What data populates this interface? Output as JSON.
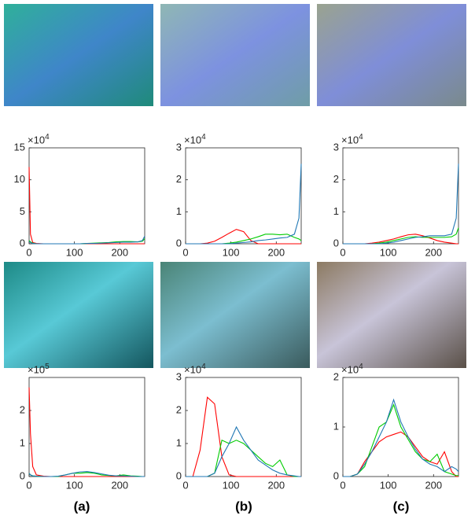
{
  "chart_data": [
    {
      "type": "line",
      "y_scale": {
        "base": "×10",
        "exponent": "4"
      },
      "x": [
        0,
        3,
        8,
        16,
        32,
        48,
        64,
        80,
        96,
        112,
        128,
        144,
        160,
        176,
        192,
        208,
        224,
        240,
        250,
        255
      ],
      "xlim": [
        0,
        255
      ],
      "xticks": [
        0,
        100,
        200
      ],
      "ylim": [
        0,
        15
      ],
      "yticks": [
        0,
        5,
        10,
        15
      ],
      "series": [
        {
          "color": "#ff0000",
          "values": [
            12,
            1.5,
            0.2,
            0.05,
            0,
            0,
            0,
            0,
            0,
            0,
            0,
            0,
            0,
            0,
            0,
            0,
            0,
            0,
            0,
            0
          ]
        },
        {
          "color": "#00cc00",
          "values": [
            0.5,
            0.3,
            0.1,
            0,
            0,
            0,
            0,
            0,
            0,
            0,
            0.05,
            0.1,
            0.15,
            0.2,
            0.3,
            0.35,
            0.35,
            0.3,
            0.4,
            0.8
          ]
        },
        {
          "color": "#1f77b4",
          "values": [
            0.3,
            0.2,
            0.05,
            0,
            0,
            0,
            0,
            0,
            0,
            0,
            0.05,
            0.05,
            0.1,
            0.15,
            0.2,
            0.25,
            0.25,
            0.3,
            0.5,
            1.2
          ]
        }
      ]
    },
    {
      "type": "line",
      "y_scale": {
        "base": "×10",
        "exponent": "4"
      },
      "x": [
        0,
        3,
        8,
        16,
        32,
        48,
        64,
        80,
        96,
        112,
        128,
        144,
        160,
        176,
        192,
        208,
        224,
        240,
        250,
        255
      ],
      "xlim": [
        0,
        255
      ],
      "xticks": [
        0,
        100,
        200
      ],
      "ylim": [
        0,
        3
      ],
      "yticks": [
        0,
        1,
        2,
        3
      ],
      "series": [
        {
          "color": "#ff0000",
          "values": [
            0,
            0,
            0,
            0,
            0,
            0.02,
            0.08,
            0.2,
            0.33,
            0.45,
            0.38,
            0.1,
            0,
            0,
            0,
            0,
            0,
            0,
            0,
            0
          ]
        },
        {
          "color": "#00cc00",
          "values": [
            0,
            0,
            0,
            0,
            0,
            0,
            0,
            0,
            0.02,
            0.05,
            0.1,
            0.15,
            0.22,
            0.3,
            0.3,
            0.28,
            0.3,
            0.2,
            0.15,
            0.1
          ]
        },
        {
          "color": "#1f77b4",
          "values": [
            0,
            0,
            0,
            0,
            0,
            0,
            0,
            0,
            0,
            0.02,
            0.04,
            0.06,
            0.1,
            0.12,
            0.15,
            0.18,
            0.2,
            0.3,
            0.8,
            2.5
          ]
        }
      ]
    },
    {
      "type": "line",
      "y_scale": {
        "base": "×10",
        "exponent": "4"
      },
      "x": [
        0,
        3,
        8,
        16,
        32,
        48,
        64,
        80,
        96,
        112,
        128,
        144,
        160,
        176,
        192,
        208,
        224,
        240,
        250,
        255
      ],
      "xlim": [
        0,
        255
      ],
      "xticks": [
        0,
        100,
        200
      ],
      "ylim": [
        0,
        3
      ],
      "yticks": [
        0,
        1,
        2,
        3
      ],
      "series": [
        {
          "color": "#ff0000",
          "values": [
            0,
            0,
            0,
            0,
            0,
            0,
            0.02,
            0.05,
            0.1,
            0.15,
            0.22,
            0.28,
            0.3,
            0.25,
            0.18,
            0.1,
            0.05,
            0.02,
            0,
            0
          ]
        },
        {
          "color": "#00cc00",
          "values": [
            0,
            0,
            0,
            0,
            0,
            0,
            0,
            0.02,
            0.05,
            0.1,
            0.15,
            0.2,
            0.22,
            0.2,
            0.2,
            0.2,
            0.2,
            0.22,
            0.3,
            0.5
          ]
        },
        {
          "color": "#1f77b4",
          "values": [
            0,
            0,
            0,
            0,
            0,
            0,
            0,
            0,
            0.02,
            0.05,
            0.1,
            0.15,
            0.2,
            0.22,
            0.25,
            0.25,
            0.25,
            0.3,
            0.8,
            2.5
          ]
        }
      ]
    },
    {
      "type": "line",
      "y_scale": {
        "base": "×10",
        "exponent": "5"
      },
      "x": [
        0,
        3,
        8,
        16,
        32,
        48,
        64,
        80,
        96,
        112,
        128,
        144,
        160,
        176,
        192,
        208,
        224,
        240,
        250,
        255
      ],
      "xlim": [
        0,
        255
      ],
      "xticks": [
        0,
        100,
        200
      ],
      "ylim": [
        0,
        3
      ],
      "yticks": [
        0,
        1,
        2
      ],
      "series": [
        {
          "color": "#ff0000",
          "values": [
            2.7,
            1.3,
            0.3,
            0.05,
            0.01,
            0,
            0,
            0,
            0,
            0,
            0,
            0,
            0,
            0,
            0,
            0,
            0,
            0,
            0,
            0
          ]
        },
        {
          "color": "#00cc00",
          "values": [
            0.1,
            0.05,
            0.02,
            0.01,
            0,
            0,
            0,
            0.05,
            0.1,
            0.1,
            0.12,
            0.1,
            0.05,
            0.03,
            0.02,
            0.05,
            0.02,
            0.01,
            0,
            0
          ]
        },
        {
          "color": "#1f77b4",
          "values": [
            0.1,
            0.05,
            0.02,
            0.01,
            0,
            0,
            0.01,
            0.05,
            0.1,
            0.14,
            0.15,
            0.12,
            0.08,
            0.04,
            0.02,
            0.02,
            0.01,
            0,
            0,
            0
          ]
        }
      ]
    },
    {
      "type": "line",
      "y_scale": {
        "base": "×10",
        "exponent": "4"
      },
      "x": [
        0,
        3,
        8,
        16,
        32,
        48,
        64,
        80,
        96,
        112,
        128,
        144,
        160,
        176,
        192,
        208,
        224,
        240,
        250,
        255
      ],
      "xlim": [
        0,
        255
      ],
      "xticks": [
        0,
        100,
        200
      ],
      "ylim": [
        0,
        3
      ],
      "yticks": [
        0,
        1,
        2,
        3
      ],
      "series": [
        {
          "color": "#ff0000",
          "values": [
            0,
            0,
            0,
            0,
            0.8,
            2.4,
            2.2,
            0.6,
            0.05,
            0,
            0,
            0,
            0,
            0,
            0,
            0,
            0,
            0,
            0,
            0
          ]
        },
        {
          "color": "#00cc00",
          "values": [
            0,
            0,
            0,
            0,
            0,
            0,
            0.1,
            1.1,
            1.0,
            1.1,
            1.0,
            0.8,
            0.6,
            0.4,
            0.3,
            0.5,
            0.05,
            0,
            0,
            0
          ]
        },
        {
          "color": "#1f77b4",
          "values": [
            0,
            0,
            0,
            0,
            0,
            0,
            0.1,
            0.6,
            1.0,
            1.5,
            1.1,
            0.8,
            0.5,
            0.35,
            0.2,
            0.1,
            0.05,
            0.02,
            0,
            0
          ]
        }
      ]
    },
    {
      "type": "line",
      "y_scale": {
        "base": "×10",
        "exponent": "4"
      },
      "x": [
        0,
        3,
        8,
        16,
        32,
        48,
        64,
        80,
        96,
        112,
        128,
        144,
        160,
        176,
        192,
        208,
        224,
        240,
        250,
        255
      ],
      "xlim": [
        0,
        255
      ],
      "xticks": [
        0,
        100,
        200
      ],
      "ylim": [
        0,
        2
      ],
      "yticks": [
        0,
        1,
        2
      ],
      "series": [
        {
          "color": "#ff0000",
          "values": [
            0,
            0,
            0,
            0,
            0.05,
            0.3,
            0.5,
            0.7,
            0.8,
            0.85,
            0.9,
            0.8,
            0.6,
            0.4,
            0.3,
            0.25,
            0.5,
            0.1,
            0,
            0
          ]
        },
        {
          "color": "#00cc00",
          "values": [
            0,
            0,
            0,
            0,
            0.05,
            0.2,
            0.6,
            1.0,
            1.1,
            1.45,
            1.0,
            0.75,
            0.5,
            0.35,
            0.3,
            0.45,
            0.1,
            0.05,
            0.02,
            0.02
          ]
        },
        {
          "color": "#1f77b4",
          "values": [
            0,
            0,
            0,
            0,
            0.05,
            0.25,
            0.5,
            0.8,
            1.1,
            1.55,
            1.1,
            0.8,
            0.55,
            0.35,
            0.25,
            0.2,
            0.1,
            0.2,
            0.15,
            0.1
          ]
        }
      ]
    }
  ],
  "captions": [
    "(a)",
    "(b)",
    "(c)"
  ]
}
